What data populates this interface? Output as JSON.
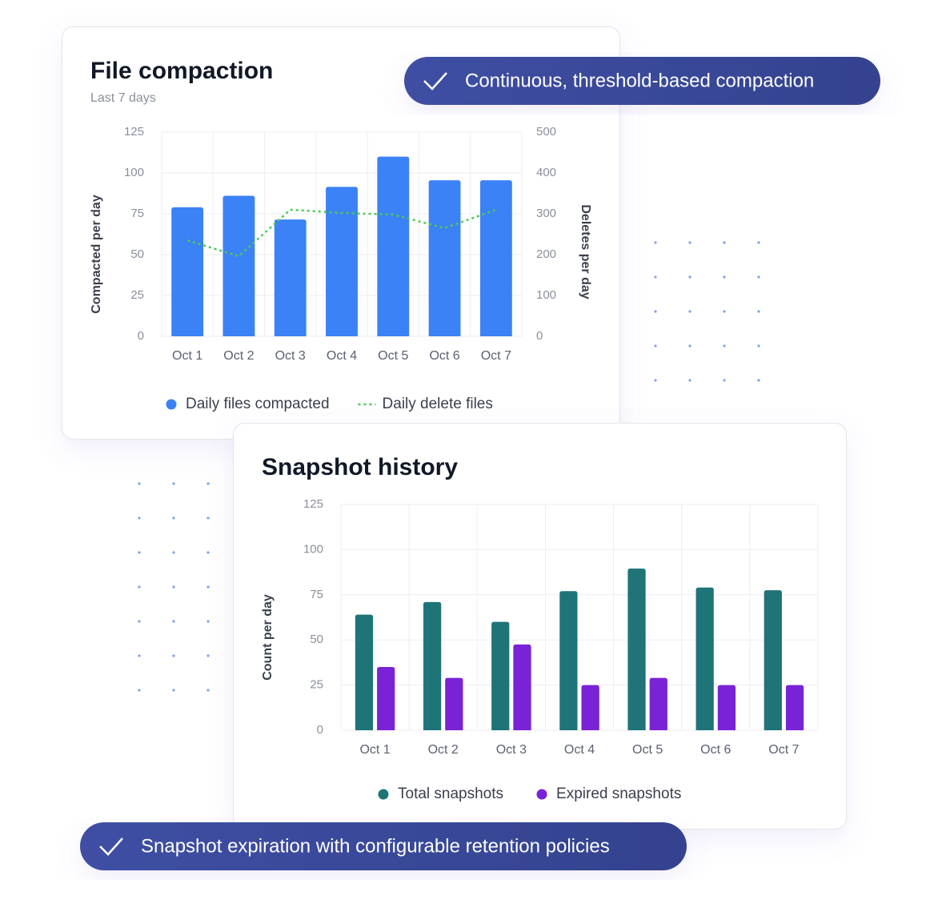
{
  "chart_data": [
    {
      "type": "bar",
      "title": "File compaction",
      "subtitle": "Last 7 days",
      "categories": [
        "Oct 1",
        "Oct 2",
        "Oct 3",
        "Oct 4",
        "Oct 5",
        "Oct 6",
        "Oct 7"
      ],
      "series": [
        {
          "name": "Daily files compacted",
          "color": "#3b82f6",
          "type": "bar",
          "values": [
            79,
            86,
            71.5,
            91.5,
            110,
            95.5,
            95.5
          ]
        },
        {
          "name": "Daily delete files",
          "color": "#4ccc4c",
          "type": "line",
          "axis": "y2",
          "values": [
            235,
            196,
            310,
            302,
            298,
            265,
            310
          ]
        }
      ],
      "ylabel": "Compacted per day",
      "y2label": "Deletes per day",
      "ylim": [
        0,
        125
      ],
      "yticks": [
        0,
        25,
        50,
        75,
        100,
        125
      ],
      "y2lim": [
        0,
        500
      ],
      "y2ticks": [
        0,
        100,
        200,
        300,
        400,
        500
      ],
      "grid": true
    },
    {
      "type": "bar",
      "title": "Snapshot history",
      "categories": [
        "Oct 1",
        "Oct 2",
        "Oct 3",
        "Oct 4",
        "Oct 5",
        "Oct 6",
        "Oct 7"
      ],
      "series": [
        {
          "name": "Total snapshots",
          "color": "#1f7478",
          "type": "bar",
          "values": [
            64,
            71,
            60,
            77,
            89.5,
            79,
            77.5
          ]
        },
        {
          "name": "Expired snapshots",
          "color": "#7a22d6",
          "type": "bar",
          "values": [
            35,
            29,
            47.5,
            25,
            29,
            25,
            25
          ]
        }
      ],
      "ylabel": "Count per day",
      "ylim": [
        0,
        125
      ],
      "yticks": [
        0,
        25,
        50,
        75,
        100,
        125
      ],
      "grid": true
    }
  ],
  "badges": [
    "Continuous, threshold-based compaction",
    "Snapshot expiration with configurable retention policies"
  ]
}
